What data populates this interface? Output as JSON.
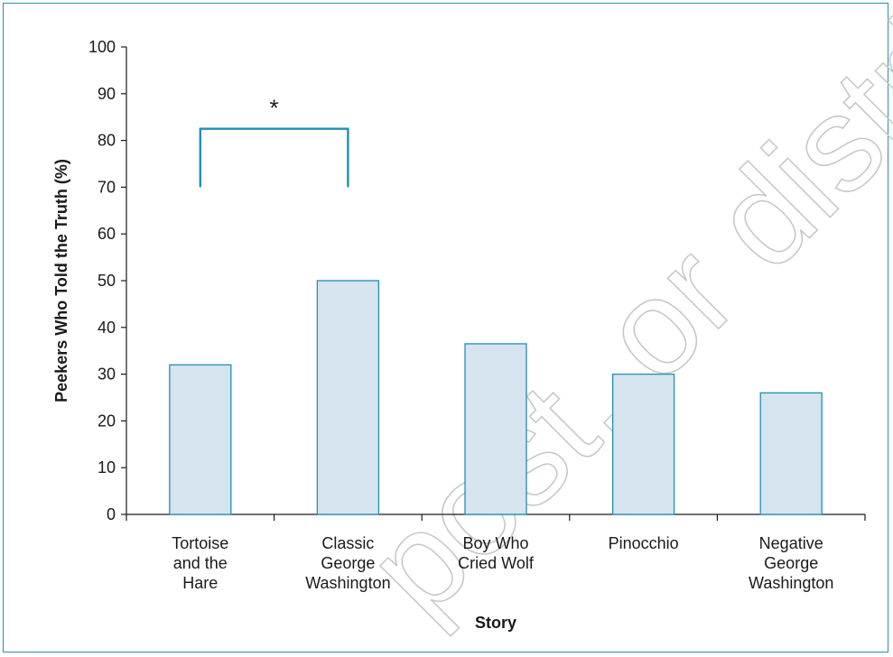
{
  "chart_data": {
    "type": "bar",
    "title": "",
    "xlabel": "Story",
    "ylabel": "Peekers Who Told the Truth (%)",
    "ylim": [
      0,
      100
    ],
    "yticks": [
      0,
      10,
      20,
      30,
      40,
      50,
      60,
      70,
      80,
      90,
      100
    ],
    "categories": [
      [
        "Tortoise",
        "and the",
        "Hare"
      ],
      [
        "Classic",
        "George",
        "Washington"
      ],
      [
        "Boy Who",
        "Cried Wolf"
      ],
      [
        "Pinocchio"
      ],
      [
        "Negative",
        "George",
        "Washington"
      ]
    ],
    "values": [
      32,
      50,
      36.5,
      30,
      26
    ],
    "grid": false,
    "annotations": [
      {
        "type": "significance-bracket",
        "between": [
          0,
          1
        ],
        "text": "*",
        "y_top": 82.5,
        "y_bottom": 70
      }
    ],
    "colors": {
      "bar_fill": "#d5e4ee",
      "bar_stroke": "#1f8fb5",
      "bracket": "#1f8fb5",
      "frame": "#2b8fb3"
    }
  },
  "watermark": {
    "text": "post, or distrib"
  }
}
